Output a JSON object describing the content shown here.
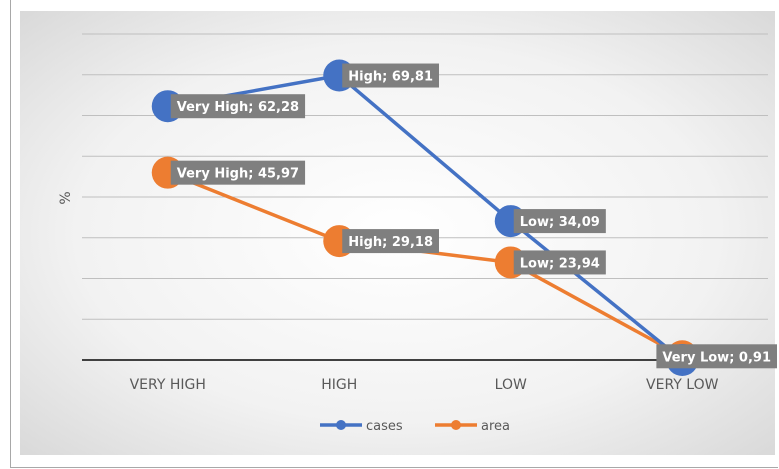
{
  "chart_data": {
    "type": "line",
    "categories": [
      "VERY HIGH",
      "HIGH",
      "LOW",
      "VERY LOW"
    ],
    "ylabel": "%",
    "ylim": [
      0,
      80
    ],
    "grid": true,
    "legend_position": "bottom",
    "series": [
      {
        "name": "cases",
        "color": "#4472c4",
        "values": [
          62.28,
          69.81,
          34.09,
          0
        ],
        "labels": [
          "Very High; 62,28",
          "High; 69,81",
          "Low; 34,09",
          ""
        ]
      },
      {
        "name": "area",
        "color": "#ed7d31",
        "values": [
          45.97,
          29.18,
          23.94,
          0.91
        ],
        "labels": [
          "Very High; 45,97",
          "High; 29,18",
          "Low; 23,94",
          "Very Low; 0,91"
        ]
      }
    ]
  }
}
